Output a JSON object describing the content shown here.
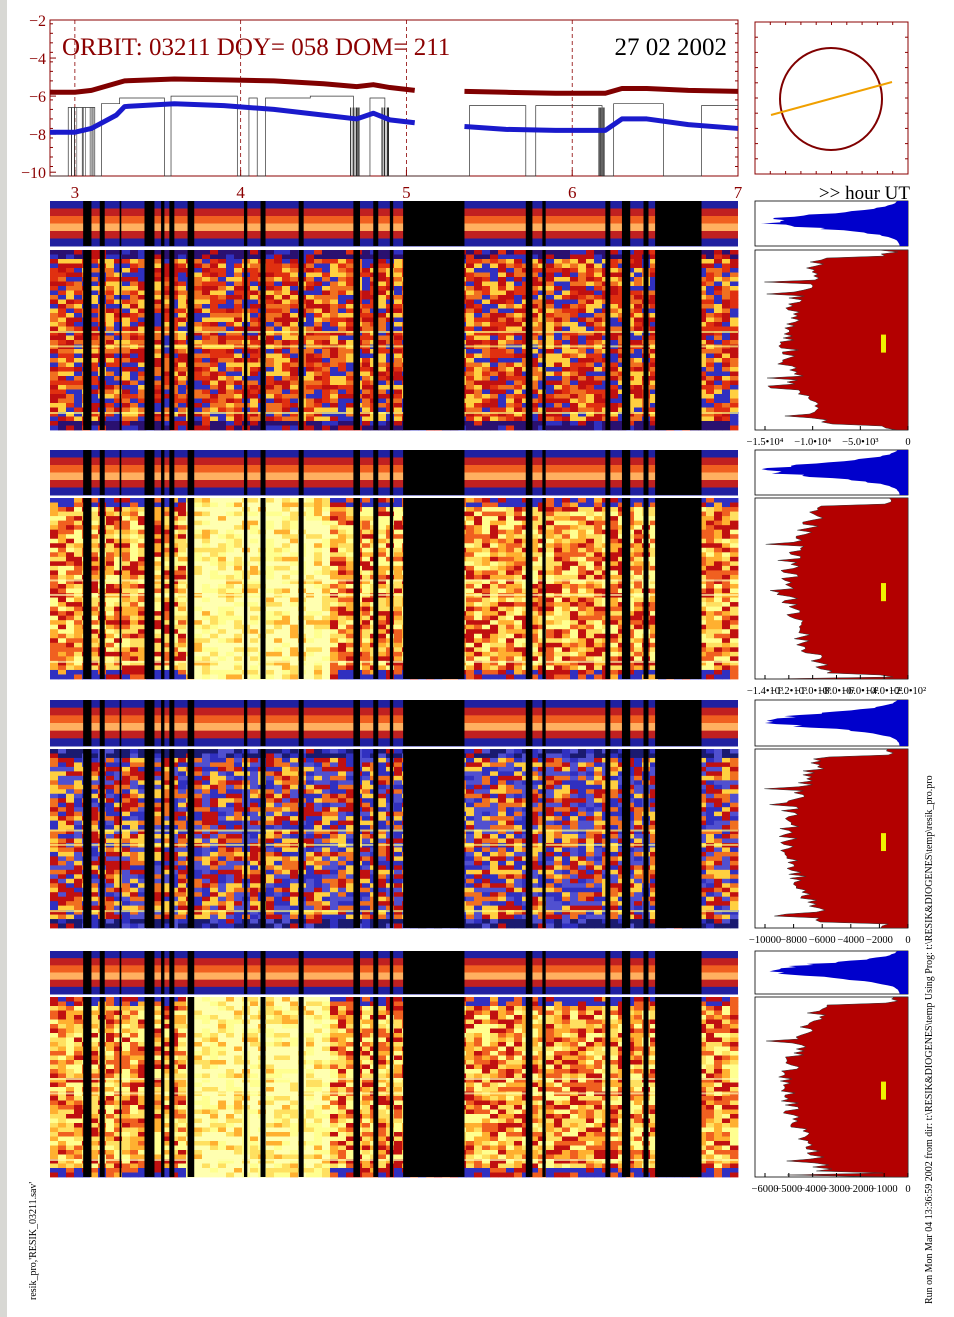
{
  "header": {
    "orbit_label": "ORBIT: 03211 DOY=  058 DOM=  211",
    "date": "27 02 2002",
    "hour_axis_label": ">> hour UT"
  },
  "colors": {
    "title": "#8b0000",
    "dark_red_curve": "#800000",
    "blue_curve": "#1a1acc",
    "histogram_fill": "#b30000",
    "histogram_line": "#0000cc",
    "orbit_circle": "#800000",
    "orbit_line": "#f0a000",
    "yellow_marker": "#f0f000"
  },
  "chart_data": [
    {
      "type": "line",
      "title": "ORBIT: 03211 DOY=  058 DOM=  211",
      "x_ticks": [
        "3",
        "4",
        "5",
        "6",
        "7"
      ],
      "xlim": [
        2.85,
        7.0
      ],
      "y_ticks": [
        "−2",
        "−4",
        "−6",
        "−8",
        "−10"
      ],
      "ylim": [
        -10.2,
        -2
      ],
      "series": [
        {
          "x": [
            2.85,
            3.0,
            3.1,
            3.3,
            3.6,
            3.9,
            4.2,
            4.5,
            4.7,
            4.8,
            4.9,
            5.05,
            5.35,
            5.6,
            5.9,
            6.2,
            6.3,
            6.45,
            6.7,
            7.0
          ],
          "y": [
            -5.8,
            -5.8,
            -5.7,
            -5.2,
            -5.1,
            -5.15,
            -5.2,
            -5.35,
            -5.5,
            -5.4,
            -5.55,
            -5.7,
            -5.75,
            -5.8,
            -5.85,
            -5.85,
            -5.6,
            -5.6,
            -5.7,
            -5.75
          ]
        },
        {
          "x": [
            2.85,
            3.0,
            3.1,
            3.25,
            3.3,
            3.6,
            3.9,
            4.2,
            4.5,
            4.7,
            4.8,
            4.9,
            5.05,
            5.35,
            5.6,
            5.9,
            6.2,
            6.3,
            6.45,
            6.7,
            7.0
          ],
          "y": [
            -7.9,
            -7.9,
            -7.7,
            -7.0,
            -6.55,
            -6.4,
            -6.5,
            -6.7,
            -7.0,
            -7.2,
            -6.9,
            -7.25,
            -7.4,
            -7.6,
            -7.75,
            -7.8,
            -7.8,
            -7.2,
            -7.2,
            -7.5,
            -7.7
          ]
        }
      ]
    },
    {
      "type": "heatmap",
      "panels": [
        {
          "hist_ticks": [
            "−1.5•10⁴",
            "−1.0•10⁴",
            "−5.0•10³",
            "0"
          ]
        },
        {
          "hist_ticks": [
            "−1.4•10³",
            "−1.2•10³",
            "−1.0•10³",
            "−8.0•10²",
            "−6.0•10²",
            "−4.0•10²",
            "−2.0•10²"
          ]
        },
        {
          "hist_ticks": [
            "−10000",
            "−8000",
            "−6000",
            "−4000",
            "−2000",
            "0"
          ]
        },
        {
          "hist_ticks": [
            "−6000",
            "−5000",
            "−4000",
            "−3000",
            "−2000",
            "−1000",
            "0"
          ]
        }
      ]
    }
  ],
  "footer": {
    "left_vertical": "resik_pro,'RESIK_03211.sav'",
    "right_vertical_run": "Run on Mon Mar 04 13:36:59 2002  from dir: t:\\RESIK&DIOGENES\\temp Using Prog: t:\\RESIK&DIOGENES\\temp\\resik_pro.pro"
  }
}
